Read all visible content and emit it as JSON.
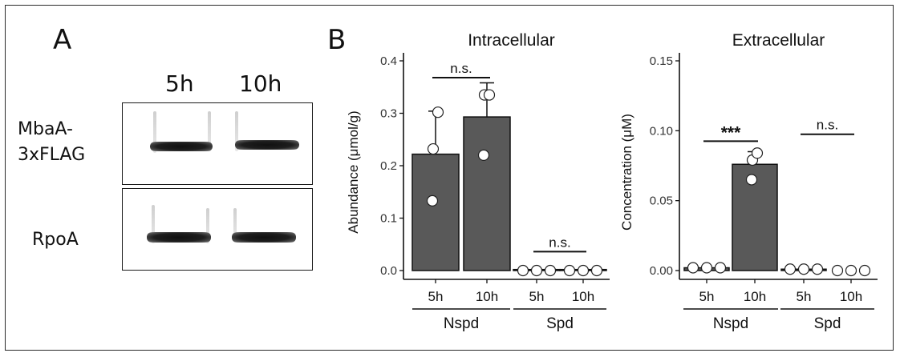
{
  "panel_a": {
    "letter": "A",
    "lanes": [
      "5h",
      "10h"
    ],
    "rows": [
      "MbaA-\n3xFLAG",
      "RpoA"
    ]
  },
  "panel_b": {
    "letter": "B"
  },
  "chart_data": [
    {
      "type": "bar",
      "title": "Intracellular",
      "ylabel": "Abundance (μmol/g)",
      "ylim": [
        0,
        0.4
      ],
      "yticks": [
        "0.0",
        "0.1",
        "0.2",
        "0.3",
        "0.4"
      ],
      "categories": [
        "5h",
        "10h",
        "5h",
        "10h"
      ],
      "groups": [
        "Nspd",
        "Spd"
      ],
      "values": [
        0.222,
        0.293,
        0.002,
        0.002
      ],
      "errors": [
        0.082,
        0.065,
        0,
        0
      ],
      "points": [
        [
          0.133,
          0.232,
          0.302
        ],
        [
          0.22,
          0.335,
          0.335
        ],
        [
          0,
          0,
          0
        ],
        [
          0,
          0,
          0
        ]
      ],
      "comparisons": [
        {
          "pair": [
            0,
            1
          ],
          "label": "n.s.",
          "y": 0.368
        },
        {
          "pair": [
            2,
            3
          ],
          "label": "n.s.",
          "y": 0.036
        }
      ]
    },
    {
      "type": "bar",
      "title": "Extracellular",
      "ylabel": "Concentration (μM)",
      "ylim": [
        0,
        0.15
      ],
      "yticks": [
        "0.00",
        "0.05",
        "0.10",
        "0.15"
      ],
      "categories": [
        "5h",
        "10h",
        "5h",
        "10h"
      ],
      "groups": [
        "Nspd",
        "Spd"
      ],
      "values": [
        0.002,
        0.076,
        0.001,
        0.0
      ],
      "errors": [
        0,
        0.009,
        0,
        0
      ],
      "points": [
        [
          0.002,
          0.002,
          0.002
        ],
        [
          0.065,
          0.079,
          0.084
        ],
        [
          0.001,
          0.001,
          0.001
        ],
        [
          0,
          0,
          0
        ]
      ],
      "comparisons": [
        {
          "pair": [
            0,
            1
          ],
          "label": "***",
          "y": 0.0925
        },
        {
          "pair": [
            2,
            3
          ],
          "label": "n.s.",
          "y": 0.0975
        }
      ]
    }
  ]
}
